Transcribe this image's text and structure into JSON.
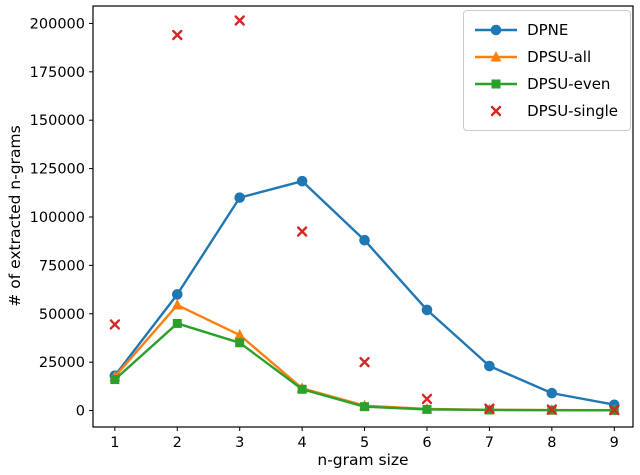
{
  "figure": {
    "background": "#ffffff",
    "axis_color": "#000000",
    "legend_border_color": "#cccccc"
  },
  "chart_data": {
    "type": "line",
    "title": "",
    "xlabel": "n-gram size",
    "ylabel": "# of extracted n-grams",
    "x": [
      1,
      2,
      3,
      4,
      5,
      6,
      7,
      8,
      9
    ],
    "x_tick_labels": [
      "1",
      "2",
      "3",
      "4",
      "5",
      "6",
      "7",
      "8",
      "9"
    ],
    "y_ticks": [
      0,
      25000,
      50000,
      75000,
      100000,
      125000,
      150000,
      175000,
      200000
    ],
    "y_tick_labels": [
      "0",
      "25000",
      "50000",
      "75000",
      "100000",
      "125000",
      "150000",
      "175000",
      "200000"
    ],
    "xlim": [
      0.65,
      9.3
    ],
    "ylim": [
      -8500,
      209000
    ],
    "grid": false,
    "legend": {
      "position": "upper right"
    },
    "series": [
      {
        "name": "DPNE",
        "color": "#1f77b4",
        "marker": "circle",
        "line": true,
        "values": [
          18000,
          60000,
          110000,
          118500,
          88000,
          52000,
          23000,
          9000,
          3000
        ]
      },
      {
        "name": "DPSU-all",
        "color": "#ff7f0e",
        "marker": "triangle",
        "line": true,
        "values": [
          17500,
          54500,
          39000,
          11500,
          2500,
          800,
          400,
          250,
          150
        ]
      },
      {
        "name": "DPSU-even",
        "color": "#2ca02c",
        "marker": "square",
        "line": true,
        "values": [
          16000,
          45000,
          35000,
          11000,
          2000,
          600,
          300,
          200,
          100
        ]
      },
      {
        "name": "DPSU-single",
        "color": "#d62728",
        "marker": "x",
        "line": false,
        "values": [
          44500,
          194000,
          201500,
          92500,
          25000,
          6000,
          1000,
          500,
          300
        ]
      }
    ]
  }
}
